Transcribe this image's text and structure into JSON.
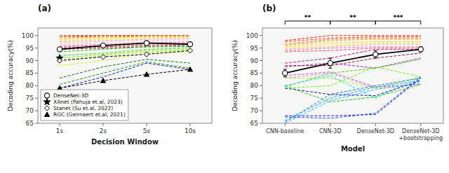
{
  "chart_data": [
    {
      "type": "line",
      "title": "(a)",
      "x_label": "Decision Window",
      "y_label": "Decoding accuracy(%)",
      "categories": [
        "1s",
        "2s",
        "5s",
        "10s"
      ],
      "ylim": [
        65,
        103
      ],
      "yticks": [
        65,
        70,
        75,
        80,
        85,
        90,
        95,
        100
      ],
      "legend": "lower left",
      "series": [
        {
          "color": "#FF0000",
          "line_style": "dashed",
          "values": [
            100.0,
            100.0,
            100.0,
            100.0
          ]
        },
        {
          "color": "#FF3300",
          "line_style": "dashed",
          "values": [
            99.5,
            100.0,
            100.0,
            100.0
          ]
        },
        {
          "color": "#FF6600",
          "line_style": "dashed",
          "values": [
            99.5,
            99.5,
            100.0,
            100.0
          ]
        },
        {
          "color": "#FF9900",
          "line_style": "dashed",
          "values": [
            99.0,
            99.5,
            99.5,
            99.5
          ]
        },
        {
          "color": "#FFCC00",
          "line_style": "dashed",
          "values": [
            98.5,
            99.0,
            99.5,
            99.5
          ]
        },
        {
          "color": "#FFEE00",
          "line_style": "dashed",
          "values": [
            98.0,
            98.5,
            99.0,
            99.5
          ]
        },
        {
          "color": "#FF99BB",
          "line_style": "dashed",
          "values": [
            97.5,
            98.0,
            98.5,
            99.0
          ]
        },
        {
          "color": "#FFBBCC",
          "line_style": "dashed",
          "values": [
            97.0,
            97.5,
            98.0,
            98.5
          ]
        },
        {
          "color": "#FFCCDD",
          "line_style": "dashed",
          "values": [
            96.5,
            97.0,
            97.5,
            98.0
          ]
        },
        {
          "color": "#FF6699",
          "line_style": "dashed",
          "values": [
            96.0,
            96.5,
            97.0,
            97.5
          ]
        },
        {
          "color": "#FF3366",
          "line_style": "dashed",
          "values": [
            95.5,
            96.0,
            96.5,
            97.0
          ]
        },
        {
          "color": "#CC0000",
          "line_style": "dashed",
          "values": [
            95.0,
            95.5,
            96.0,
            96.5
          ]
        },
        {
          "color": "#990000",
          "line_style": "dashed",
          "values": [
            94.5,
            95.0,
            95.5,
            96.0
          ]
        },
        {
          "color": "#00CC00",
          "line_style": "dashed",
          "values": [
            93.5,
            94.5,
            95.5,
            95.5
          ]
        },
        {
          "color": "#33DD00",
          "line_style": "dashed",
          "values": [
            92.0,
            93.0,
            94.5,
            95.0
          ]
        },
        {
          "color": "#66EE00",
          "line_style": "dashed",
          "values": [
            91.0,
            92.5,
            94.0,
            94.5
          ]
        },
        {
          "color": "#99EE00",
          "line_style": "dashed",
          "values": [
            90.0,
            92.0,
            93.5,
            94.0
          ]
        },
        {
          "color": "#CCEE00",
          "line_style": "dashed",
          "values": [
            88.0,
            90.0,
            93.0,
            93.5
          ]
        },
        {
          "color": "#006600",
          "line_style": "dashed",
          "values": [
            83.0,
            87.5,
            90.5,
            89.0
          ]
        },
        {
          "color": "#009900",
          "line_style": "dashed",
          "values": [
            80.5,
            85.0,
            89.5,
            87.0
          ]
        },
        {
          "color": "#0000FF",
          "line_style": "dashed",
          "values": [
            79.0,
            83.5,
            89.0,
            86.5
          ]
        },
        {
          "name": "DenseNet-3D",
          "color": "#000000",
          "line_style": "solid",
          "marker": "circle",
          "values": [
            94.5,
            96.0,
            97.0,
            96.5
          ],
          "errors": [
            0.8,
            0.5,
            0.5,
            0.7
          ]
        },
        {
          "name": "XAnet (Pahuja et.al, 2023)",
          "type": "scatter",
          "color": "#000000",
          "marker": "star",
          "values": [
            91.0,
            null,
            null,
            null
          ]
        },
        {
          "name": "Stanet (Su et.al, 2022)",
          "color": "#000000",
          "line_style": "dashed",
          "marker": "diamond",
          "values": [
            90.0,
            91.5,
            92.5,
            94.0
          ]
        },
        {
          "name": "RGC (Geirnaert et.al, 2021)",
          "color": "#000000",
          "line_style": "dashed",
          "marker": "triangle",
          "values": [
            79.0,
            82.0,
            84.5,
            86.5
          ]
        }
      ]
    },
    {
      "type": "line",
      "title": "(b)",
      "x_label": "Model",
      "y_label": "Decoding accuracy(%)",
      "categories": [
        "CNN-baseline",
        "CNN-3D",
        "DenseNet-3D",
        "DenseNet-3D\n+bootstrapping"
      ],
      "ylim": [
        65,
        103
      ],
      "yticks": [
        65,
        70,
        75,
        80,
        85,
        90,
        95,
        100
      ],
      "annotations": [
        {
          "text": "**",
          "from": "CNN-baseline",
          "to": "CNN-3D"
        },
        {
          "text": "**",
          "from": "CNN-3D",
          "to": "DenseNet-3D"
        },
        {
          "text": "***",
          "from": "DenseNet-3D",
          "to": "DenseNet-3D\n+bootstrapping"
        }
      ],
      "series": [
        {
          "color": "#FF0000",
          "line_style": "dashed",
          "values": [
            98.0,
            100.0,
            100.0,
            100.0
          ]
        },
        {
          "color": "#FF3300",
          "line_style": "dashed",
          "values": [
            97.5,
            99.0,
            99.5,
            99.5
          ]
        },
        {
          "color": "#FF6600",
          "line_style": "dashed",
          "values": [
            96.5,
            98.5,
            99.0,
            99.0
          ]
        },
        {
          "color": "#FF9900",
          "line_style": "dashed",
          "values": [
            96.0,
            98.0,
            98.5,
            98.5
          ]
        },
        {
          "color": "#FFCC00",
          "line_style": "dashed",
          "values": [
            95.5,
            97.0,
            97.5,
            97.5
          ]
        },
        {
          "color": "#FFEE00",
          "line_style": "dashed",
          "values": [
            95.0,
            96.0,
            97.0,
            97.0
          ]
        },
        {
          "color": "#FF99BB",
          "line_style": "dashed",
          "values": [
            94.5,
            95.5,
            96.5,
            96.5
          ]
        },
        {
          "color": "#FF6699",
          "line_style": "dashed",
          "values": [
            94.0,
            95.0,
            95.5,
            95.5
          ]
        },
        {
          "color": "#FF3366",
          "line_style": "dashed",
          "values": [
            93.5,
            94.0,
            95.0,
            95.0
          ]
        },
        {
          "color": "#CC0066",
          "line_style": "dashed",
          "values": [
            89.0,
            91.0,
            94.5,
            94.5
          ]
        },
        {
          "color": "#990033",
          "line_style": "dashed",
          "values": [
            88.0,
            88.0,
            91.0,
            93.0
          ]
        },
        {
          "color": "#AA00AA",
          "line_style": "dashed",
          "values": [
            87.5,
            89.0,
            87.0,
            91.0
          ]
        },
        {
          "color": "#CC44CC",
          "line_style": "dashed",
          "values": [
            84.0,
            85.5,
            79.5,
            80.5
          ]
        },
        {
          "color": "#DD88DD",
          "line_style": "dashed",
          "values": [
            83.0,
            85.0,
            79.0,
            80.5
          ]
        },
        {
          "color": "#00CC00",
          "line_style": "dashed",
          "values": [
            80.0,
            73.5,
            75.5,
            80.5
          ]
        },
        {
          "color": "#33DD00",
          "line_style": "dashed",
          "values": [
            79.5,
            85.0,
            87.0,
            90.5
          ]
        },
        {
          "color": "#66EE00",
          "line_style": "dashed",
          "values": [
            79.0,
            80.0,
            87.5,
            83.5
          ]
        },
        {
          "color": "#99EE00",
          "line_style": "dashed",
          "values": [
            83.0,
            83.0,
            79.0,
            83.5
          ]
        },
        {
          "color": "#0000FF",
          "line_style": "dashed",
          "values": [
            68.0,
            68.0,
            68.5,
            83.0
          ]
        },
        {
          "color": "#0033FF",
          "line_style": "dashed",
          "values": [
            67.5,
            67.0,
            69.0,
            83.5
          ]
        },
        {
          "color": "#0066FF",
          "line_style": "dashed",
          "values": [
            65.5,
            76.5,
            80.0,
            83.0
          ]
        },
        {
          "color": "#0099FF",
          "line_style": "dashed",
          "values": [
            66.0,
            75.0,
            79.5,
            82.0
          ]
        },
        {
          "color": "#00BBFF",
          "line_style": "dashed",
          "values": [
            65.0,
            74.0,
            78.5,
            81.0
          ]
        },
        {
          "color": "#00DDFF",
          "line_style": "dashed",
          "values": [
            80.0,
            84.0,
            75.0,
            83.5
          ]
        },
        {
          "color": "#000099",
          "line_style": "dashed",
          "values": [
            79.0,
            76.5,
            76.0,
            82.0
          ]
        },
        {
          "color": "#000000",
          "line_style": "solid",
          "marker": "circle",
          "values": [
            85.0,
            89.0,
            92.5,
            94.5
          ],
          "errors": [
            1.5,
            2.0,
            1.5,
            1.0
          ]
        }
      ]
    }
  ]
}
